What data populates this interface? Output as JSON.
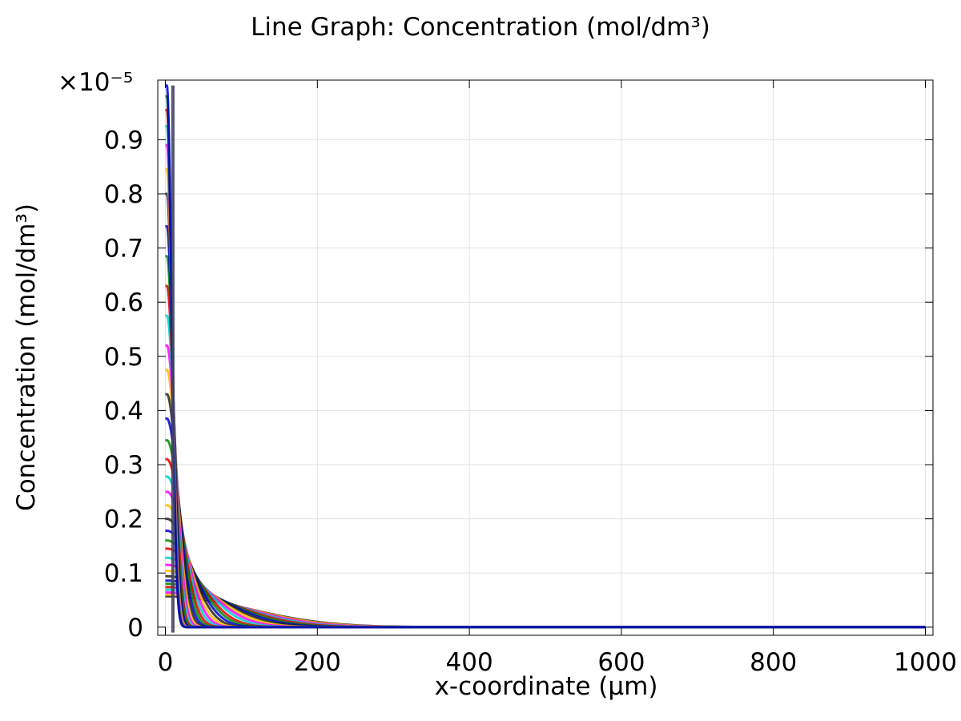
{
  "chart_data": {
    "type": "line",
    "title": "Line Graph: Concentration (mol/dm³)",
    "xlabel": "x-coordinate (µm)",
    "ylabel": "Concentration (mol/dm³)",
    "y_multiplier": "×10⁻⁵",
    "xlim": [
      -10,
      1010
    ],
    "ylim": [
      -0.015,
      1.01
    ],
    "x_ticks": [
      0,
      200,
      400,
      600,
      800,
      1000
    ],
    "y_ticks": [
      0,
      0.1,
      0.2,
      0.3,
      0.4,
      0.5,
      0.6,
      0.7,
      0.8,
      0.9
    ],
    "x_tick_labels": [
      "0",
      "200",
      "400",
      "600",
      "800",
      "1000"
    ],
    "y_tick_labels": [
      "0",
      "0.1",
      "0.2",
      "0.3",
      "0.4",
      "0.5",
      "0.6",
      "0.7",
      "0.8",
      "0.9"
    ],
    "grid": true,
    "legend": "none",
    "series_colors": [
      "#0000cc",
      "#008800",
      "#dd0000",
      "#00cccc",
      "#ff00ff",
      "#ffbb00",
      "#222222"
    ],
    "peak_values": [
      1.0,
      0.98,
      0.955,
      0.925,
      0.89,
      0.845,
      0.8,
      0.74,
      0.685,
      0.63,
      0.575,
      0.52,
      0.475,
      0.43,
      0.385,
      0.345,
      0.31,
      0.278,
      0.25,
      0.225,
      0.2,
      0.178,
      0.16,
      0.145,
      0.128,
      0.115,
      0.104,
      0.094,
      0.086,
      0.08,
      0.074,
      0.069,
      0.064,
      0.06,
      0.057
    ],
    "source_x": 10,
    "x_max": 1000
  }
}
